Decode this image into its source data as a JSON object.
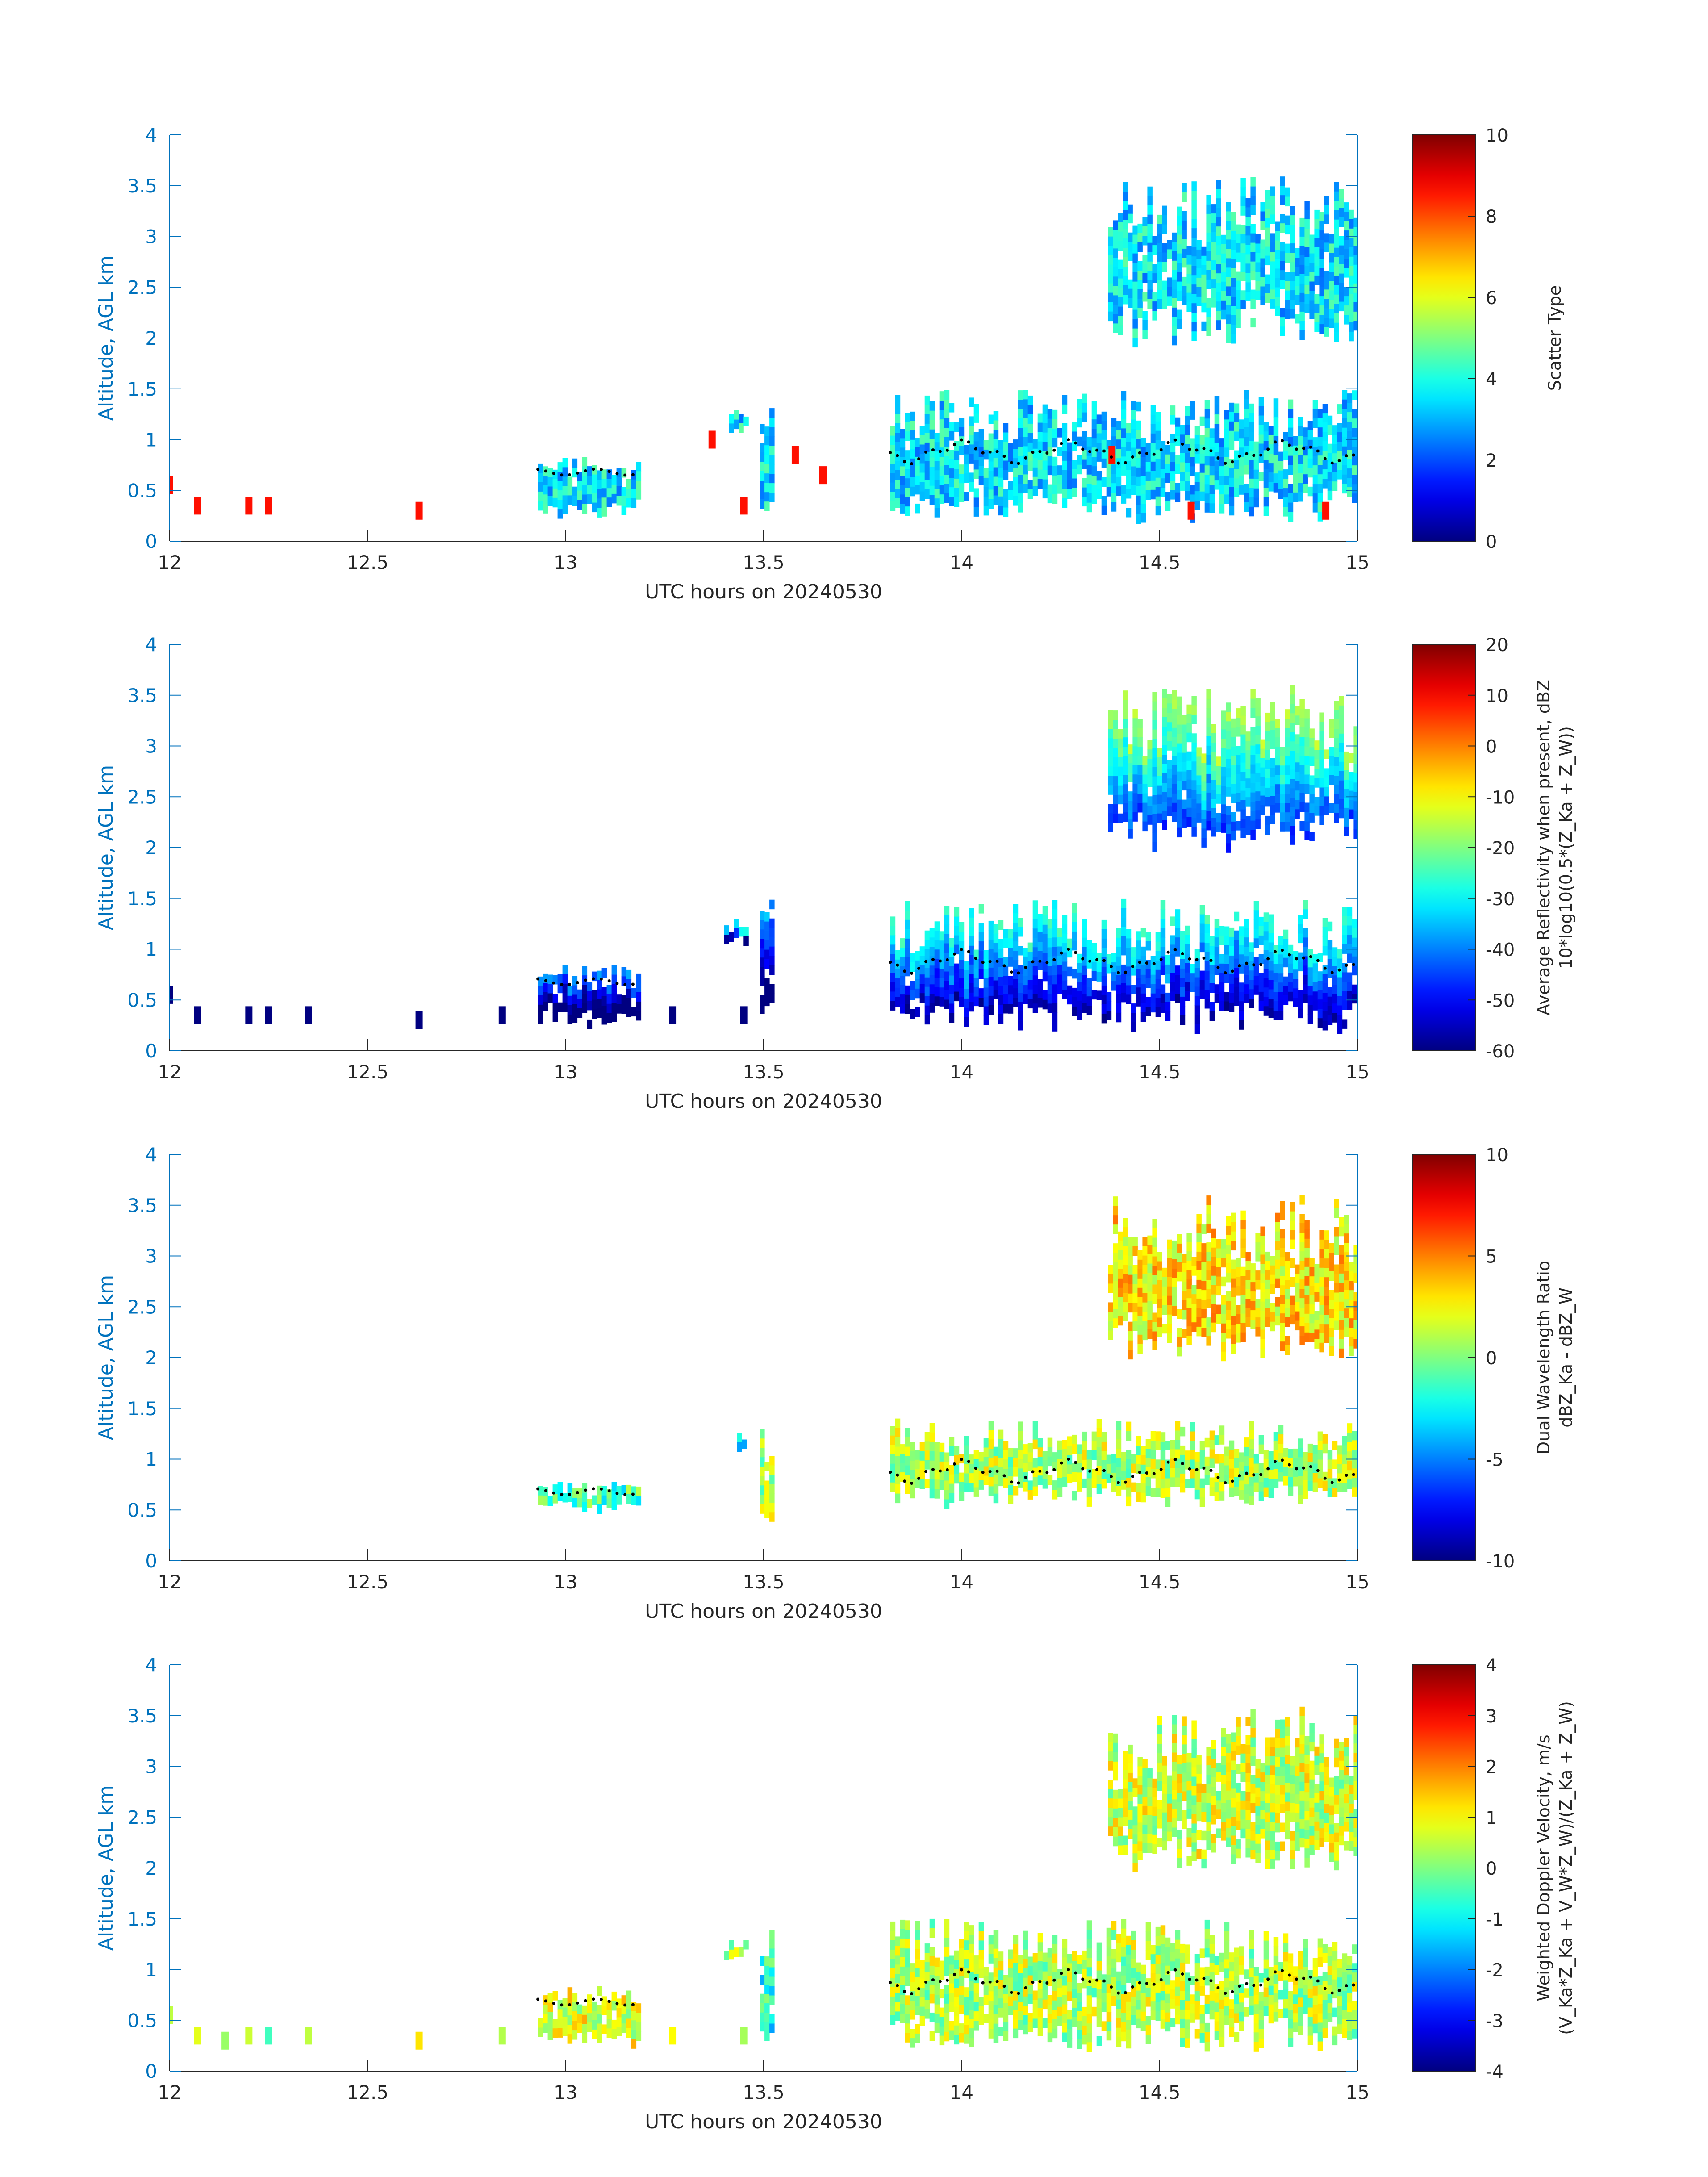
{
  "chart_data": [
    {
      "type": "heatmap",
      "title": "",
      "xlabel": "UTC hours on 20240530",
      "ylabel": "Altitude, AGL km",
      "xlim": [
        12,
        15
      ],
      "ylim": [
        0,
        4
      ],
      "x_ticks": [
        "12",
        "12.5",
        "13",
        "13.5",
        "14",
        "14.5",
        "15"
      ],
      "y_ticks": [
        "0",
        "0.5",
        "1",
        "1.5",
        "2",
        "2.5",
        "3",
        "3.5",
        "4"
      ],
      "colorbar": {
        "label_lines": [
          "Scatter Type"
        ],
        "clim": [
          0,
          10
        ],
        "ticks": [
          "0",
          "2",
          "4",
          "6",
          "8",
          "10"
        ],
        "colormap": "jet"
      },
      "regions": [
        {
          "name": "low-cloud-layer",
          "x": [
            13.82,
            15.0
          ],
          "y": [
            0.25,
            1.5
          ],
          "value": 3.5
        },
        {
          "name": "upper-cloud",
          "x": [
            14.37,
            15.0
          ],
          "y": [
            2.0,
            3.6
          ],
          "value": 3.5
        },
        {
          "name": "cloud-13",
          "x": [
            12.93,
            13.18
          ],
          "y": [
            0.3,
            0.85
          ],
          "value": 3.5
        },
        {
          "name": "column-13.5",
          "x": [
            13.49,
            13.52
          ],
          "y": [
            0.25,
            1.5
          ],
          "value": 3.5
        },
        {
          "name": "cell-13.4",
          "x": [
            13.4,
            13.45
          ],
          "y": [
            1.1,
            1.3
          ],
          "value": 3.5
        }
      ],
      "scatter_points": [
        {
          "x": 12.0,
          "y": 0.55,
          "value": 8.6
        },
        {
          "x": 12.07,
          "y": 0.35,
          "value": 8.6
        },
        {
          "x": 12.2,
          "y": 0.35,
          "value": 8.6
        },
        {
          "x": 12.25,
          "y": 0.35,
          "value": 8.6
        },
        {
          "x": 12.63,
          "y": 0.3,
          "value": 8.6
        },
        {
          "x": 13.37,
          "y": 1.0,
          "value": 8.6
        },
        {
          "x": 13.45,
          "y": 0.35,
          "value": 8.6
        },
        {
          "x": 13.58,
          "y": 0.85,
          "value": 8.6
        },
        {
          "x": 13.65,
          "y": 0.65,
          "value": 8.6
        },
        {
          "x": 14.38,
          "y": 0.85,
          "value": 8.6
        },
        {
          "x": 14.58,
          "y": 0.3,
          "value": 8.6
        },
        {
          "x": 14.92,
          "y": 0.3,
          "value": 8.6
        }
      ],
      "cloud_base_points": "black dots along ~0.7-1.0 km"
    },
    {
      "type": "heatmap",
      "title": "",
      "xlabel": "UTC hours on 20240530",
      "ylabel": "Altitude, AGL km",
      "xlim": [
        12,
        15
      ],
      "ylim": [
        0,
        4
      ],
      "x_ticks": [
        "12",
        "12.5",
        "13",
        "13.5",
        "14",
        "14.5",
        "15"
      ],
      "y_ticks": [
        "0",
        "0.5",
        "1",
        "1.5",
        "2",
        "2.5",
        "3",
        "3.5",
        "4"
      ],
      "colorbar": {
        "label_lines": [
          "Average Reflectivity when present, dBZ",
          "10*log10(0.5*(Z_Ka + Z_W))"
        ],
        "clim": [
          -60,
          20
        ],
        "ticks": [
          "-60",
          "-50",
          "-40",
          "-30",
          "-20",
          "-10",
          "0",
          "10",
          "20"
        ],
        "colormap": "jet"
      },
      "regions": [
        {
          "name": "low-cloud-layer",
          "x": [
            13.82,
            15.0
          ],
          "y": [
            0.25,
            1.5
          ],
          "value": -45
        },
        {
          "name": "upper-cloud",
          "x": [
            14.37,
            15.0
          ],
          "y": [
            2.0,
            3.6
          ],
          "value": -35
        },
        {
          "name": "cloud-13",
          "x": [
            12.93,
            13.18
          ],
          "y": [
            0.3,
            0.85
          ],
          "value": -58
        },
        {
          "name": "column-13.5",
          "x": [
            13.49,
            13.52
          ],
          "y": [
            0.25,
            1.5
          ],
          "value": -55
        },
        {
          "name": "cell-13.4",
          "x": [
            13.4,
            13.45
          ],
          "y": [
            1.1,
            1.3
          ],
          "value": -50
        }
      ],
      "scatter_points": [
        {
          "x": 12.0,
          "y": 0.55,
          "value": -60
        },
        {
          "x": 12.07,
          "y": 0.35,
          "value": -60
        },
        {
          "x": 12.2,
          "y": 0.35,
          "value": -60
        },
        {
          "x": 12.25,
          "y": 0.35,
          "value": -60
        },
        {
          "x": 12.35,
          "y": 0.35,
          "value": -60
        },
        {
          "x": 12.63,
          "y": 0.3,
          "value": -60
        },
        {
          "x": 12.84,
          "y": 0.35,
          "value": -60
        },
        {
          "x": 13.27,
          "y": 0.35,
          "value": -60
        },
        {
          "x": 13.45,
          "y": 0.35,
          "value": -60
        }
      ],
      "cloud_base_points": "black dots along ~0.7-1.0 km"
    },
    {
      "type": "heatmap",
      "title": "",
      "xlabel": "UTC hours on 20240530",
      "ylabel": "Altitude, AGL km",
      "xlim": [
        12,
        15
      ],
      "ylim": [
        0,
        4
      ],
      "x_ticks": [
        "12",
        "12.5",
        "13",
        "13.5",
        "14",
        "14.5",
        "15"
      ],
      "y_ticks": [
        "0",
        "0.5",
        "1",
        "1.5",
        "2",
        "2.5",
        "3",
        "3.5",
        "4"
      ],
      "colorbar": {
        "label_lines": [
          "Dual Wavelength Ratio",
          "dBZ_Ka - dBZ_W"
        ],
        "clim": [
          -10,
          10
        ],
        "ticks": [
          "-10",
          "-5",
          "0",
          "5",
          "10"
        ],
        "colormap": "jet"
      },
      "regions": [
        {
          "name": "low-cloud-layer",
          "x": [
            13.82,
            15.0
          ],
          "y": [
            0.6,
            1.4
          ],
          "value": 1
        },
        {
          "name": "upper-cloud",
          "x": [
            14.37,
            15.0
          ],
          "y": [
            2.0,
            3.6
          ],
          "value": 3
        },
        {
          "name": "cloud-13",
          "x": [
            12.93,
            13.18
          ],
          "y": [
            0.55,
            0.8
          ],
          "value": -1
        },
        {
          "name": "column-13.5",
          "x": [
            13.49,
            13.52
          ],
          "y": [
            0.3,
            1.4
          ],
          "value": 1
        },
        {
          "name": "cell-13.4",
          "x": [
            13.42,
            13.45
          ],
          "y": [
            1.15,
            1.3
          ],
          "value": -2
        }
      ],
      "scatter_points": [],
      "cloud_base_points": "black dots along ~0.7-1.0 km"
    },
    {
      "type": "heatmap",
      "title": "",
      "xlabel": "UTC hours on 20240530",
      "ylabel": "Altitude, AGL km",
      "xlim": [
        12,
        15
      ],
      "ylim": [
        0,
        4
      ],
      "x_ticks": [
        "12",
        "12.5",
        "13",
        "13.5",
        "14",
        "14.5",
        "15"
      ],
      "y_ticks": [
        "0",
        "0.5",
        "1",
        "1.5",
        "2",
        "2.5",
        "3",
        "3.5",
        "4"
      ],
      "colorbar": {
        "label_lines": [
          "Weighted Doppler Velocity, m/s",
          "(V_Ka*Z_Ka + V_W*Z_W)/(Z_Ka + Z_W)"
        ],
        "clim": [
          -4,
          4
        ],
        "ticks": [
          "-4",
          "-3",
          "-2",
          "-1",
          "0",
          "1",
          "2",
          "3",
          "4"
        ],
        "colormap": "jet"
      },
      "regions": [
        {
          "name": "low-cloud-layer",
          "x": [
            13.82,
            15.0
          ],
          "y": [
            0.25,
            1.5
          ],
          "value": 0.4
        },
        {
          "name": "upper-cloud",
          "x": [
            14.37,
            15.0
          ],
          "y": [
            2.0,
            3.6
          ],
          "value": 0.6
        },
        {
          "name": "cloud-13",
          "x": [
            12.93,
            13.18
          ],
          "y": [
            0.3,
            0.85
          ],
          "value": 0.8
        },
        {
          "name": "column-13.5",
          "x": [
            13.49,
            13.52
          ],
          "y": [
            0.25,
            1.5
          ],
          "value": -0.8
        },
        {
          "name": "cell-13.4",
          "x": [
            13.4,
            13.45
          ],
          "y": [
            1.1,
            1.3
          ],
          "value": 0.3
        }
      ],
      "scatter_points": [
        {
          "x": 12.0,
          "y": 0.55,
          "value": 0.5
        },
        {
          "x": 12.07,
          "y": 0.35,
          "value": 0.8
        },
        {
          "x": 12.14,
          "y": 0.3,
          "value": 0.2
        },
        {
          "x": 12.2,
          "y": 0.35,
          "value": 0.6
        },
        {
          "x": 12.25,
          "y": 0.35,
          "value": -0.5
        },
        {
          "x": 12.35,
          "y": 0.35,
          "value": 0.5
        },
        {
          "x": 12.63,
          "y": 0.3,
          "value": 1.2
        },
        {
          "x": 12.84,
          "y": 0.35,
          "value": 0.4
        },
        {
          "x": 13.27,
          "y": 0.35,
          "value": 1.0
        },
        {
          "x": 13.45,
          "y": 0.35,
          "value": 0.3
        }
      ],
      "cloud_base_points": "black dots along ~0.7-1.0 km"
    }
  ]
}
